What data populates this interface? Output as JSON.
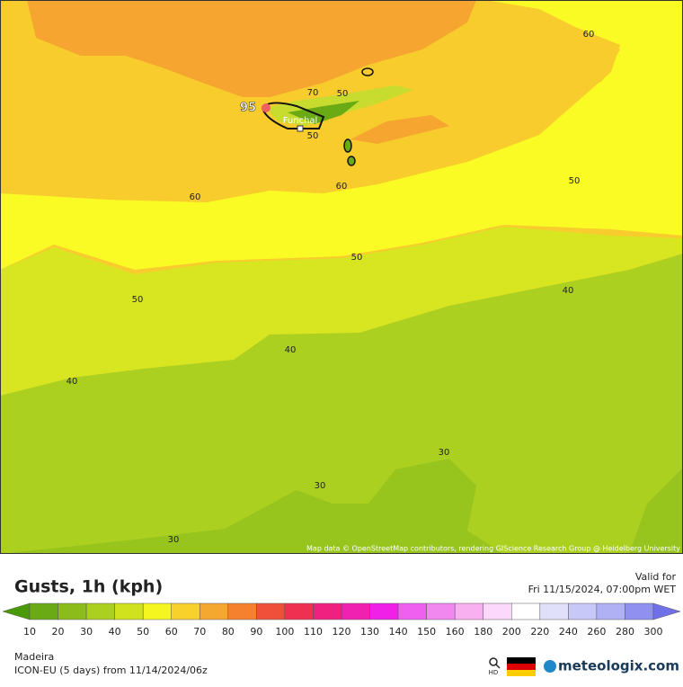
{
  "map": {
    "contour_labels": [
      "60",
      "70",
      "50",
      "50",
      "60",
      "60",
      "50",
      "50",
      "50",
      "40",
      "40",
      "40",
      "30",
      "30",
      "30"
    ],
    "max_label": "95",
    "city": "Funchal",
    "attribution": "Map data © OpenStreetMap contributors, rendering GIScience Research Group @ Heidelberg University"
  },
  "header": {
    "title": "Gusts, 1h (kph)",
    "valid_label": "Valid for",
    "valid_time": "Fri 11/15/2024, 07:00pm WET"
  },
  "legend": {
    "labels": [
      10,
      20,
      30,
      40,
      50,
      60,
      70,
      80,
      90,
      100,
      110,
      120,
      130,
      140,
      150,
      160,
      180,
      200,
      220,
      240,
      260,
      280,
      300
    ],
    "colors": [
      "#4a9a08",
      "#6aaa14",
      "#8cbc1c",
      "#acd020",
      "#d0e21e",
      "#f5f520",
      "#f8d22a",
      "#f5a830",
      "#f5802e",
      "#f0503a",
      "#f03050",
      "#f02080",
      "#f020b0",
      "#f020e8",
      "#f060f0",
      "#f088f0",
      "#f8b0f0",
      "#fcd8fc",
      "#ffffff",
      "#e0e0fa",
      "#c8c8f8",
      "#b0b0f4",
      "#9090f0",
      "#7070e8"
    ]
  },
  "footer": {
    "region": "Madeira",
    "model": "ICON-EU (5 days) from 11/14/2024/06z",
    "hd": "HD",
    "brand": "meteologix.com"
  }
}
